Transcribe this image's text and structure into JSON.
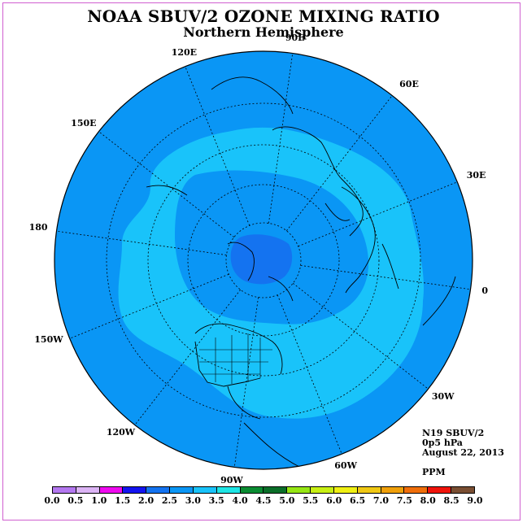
{
  "header": {
    "title": "NOAA SBUV/2 OZONE MIXING RATIO",
    "subtitle": "Northern Hemisphere"
  },
  "map": {
    "projection": "north polar stereographic",
    "longitude_labels": [
      "90E",
      "60E",
      "30E",
      "0",
      "30W",
      "60W",
      "90W",
      "120W",
      "150W",
      "180",
      "150E",
      "120E"
    ],
    "field_colors": {
      "outer_band": "#0a96f5",
      "middle_band": "#19c3fa",
      "inner_band": "#0a96f5",
      "polar_core": "#1473f0"
    },
    "contour_levels_shown": [
      2.0,
      2.5,
      3.0,
      3.5
    ]
  },
  "info": {
    "instrument": "N19 SBUV/2",
    "level": "0p5 hPa",
    "date": "August 22, 2013",
    "units": "PPM"
  },
  "colorbar": {
    "ticks": [
      "0.0",
      "0.5",
      "1.0",
      "1.5",
      "2.0",
      "2.5",
      "3.0",
      "3.5",
      "4.0",
      "4.5",
      "5.0",
      "5.5",
      "6.0",
      "6.5",
      "7.0",
      "7.5",
      "8.0",
      "8.5",
      "9.0"
    ],
    "colors": [
      "#b478f0",
      "#dcb4f5",
      "#f00af0",
      "#1414f0",
      "#1473f0",
      "#0a96f5",
      "#19c3fa",
      "#1ee6e6",
      "#0a8c32",
      "#0a6e28",
      "#96e614",
      "#c8f014",
      "#f0f014",
      "#f0c814",
      "#f0a00a",
      "#f06e0a",
      "#f0140a",
      "#7a4e32"
    ]
  }
}
